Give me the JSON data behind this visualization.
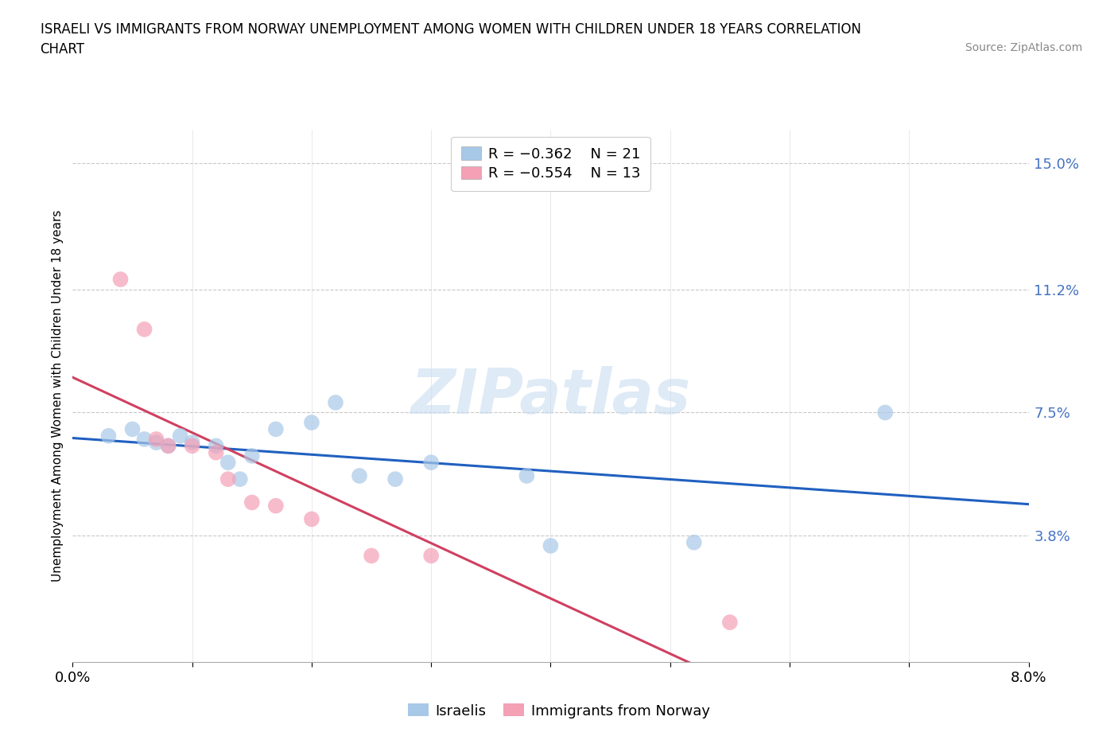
{
  "title_line1": "ISRAELI VS IMMIGRANTS FROM NORWAY UNEMPLOYMENT AMONG WOMEN WITH CHILDREN UNDER 18 YEARS CORRELATION",
  "title_line2": "CHART",
  "source_text": "Source: ZipAtlas.com",
  "ylabel": "Unemployment Among Women with Children Under 18 years",
  "xlim": [
    0.0,
    0.08
  ],
  "ylim": [
    0.0,
    0.16
  ],
  "ytick_vals": [
    0.038,
    0.075,
    0.112,
    0.15
  ],
  "ytick_labels": [
    "3.8%",
    "7.5%",
    "11.2%",
    "15.0%"
  ],
  "legend_text_blue": "R = −0.362    N = 21",
  "legend_text_pink": "R = −0.554    N = 13",
  "legend_label_blue": "Israelis",
  "legend_label_pink": "Immigrants from Norway",
  "color_blue": "#A8C8E8",
  "color_pink": "#F4A0B5",
  "line_color_blue": "#2060C0",
  "line_color_pink": "#D04060",
  "watermark": "ZIPatlas",
  "israelis_x": [
    0.003,
    0.005,
    0.006,
    0.007,
    0.008,
    0.009,
    0.01,
    0.012,
    0.013,
    0.014,
    0.015,
    0.017,
    0.02,
    0.022,
    0.024,
    0.027,
    0.03,
    0.038,
    0.04,
    0.052,
    0.068
  ],
  "israelis_y": [
    0.068,
    0.07,
    0.067,
    0.066,
    0.065,
    0.068,
    0.066,
    0.065,
    0.06,
    0.055,
    0.062,
    0.07,
    0.072,
    0.078,
    0.056,
    0.055,
    0.06,
    0.056,
    0.035,
    0.036,
    0.075
  ],
  "norway_x": [
    0.004,
    0.006,
    0.007,
    0.008,
    0.01,
    0.012,
    0.013,
    0.015,
    0.017,
    0.02,
    0.025,
    0.03,
    0.055
  ],
  "norway_y": [
    0.115,
    0.1,
    0.067,
    0.065,
    0.065,
    0.063,
    0.055,
    0.048,
    0.047,
    0.043,
    0.032,
    0.032,
    0.012
  ]
}
